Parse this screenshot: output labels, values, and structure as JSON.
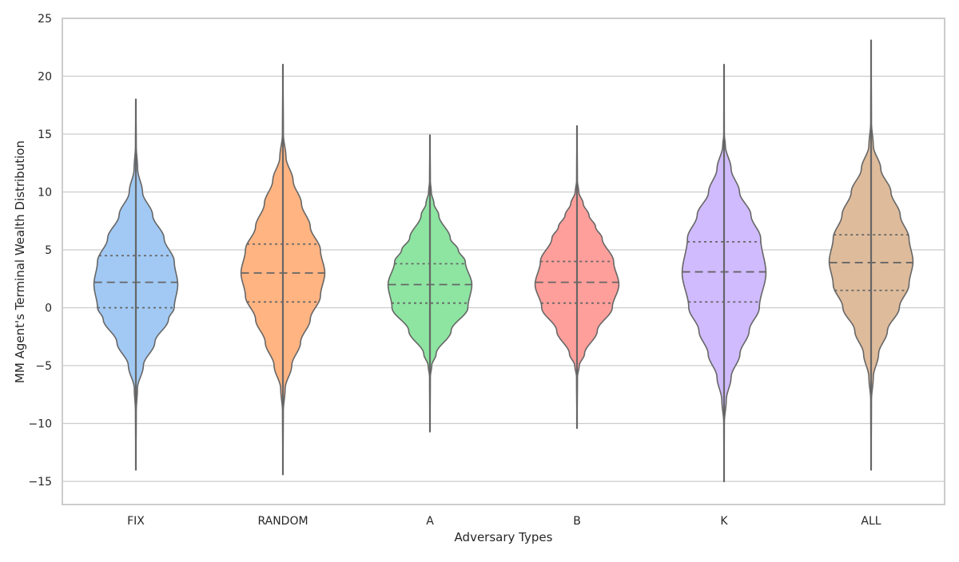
{
  "chart_data": {
    "type": "violin",
    "title": "",
    "xlabel": "Adversary Types",
    "ylabel": "MM Agent's Terminal Wealth Distribution",
    "ylim": [
      -17,
      25
    ],
    "y_ticks": [
      -15,
      -10,
      -5,
      0,
      5,
      10,
      15,
      20,
      25
    ],
    "y_tick_labels": [
      "−15",
      "−10",
      "−5",
      "0",
      "5",
      "10",
      "15",
      "20",
      "25"
    ],
    "grid": "horizontal",
    "inner": "quartile",
    "categories": [
      "FIX",
      "RANDOM",
      "A",
      "B",
      "K",
      "ALL"
    ],
    "violins": [
      {
        "category": "FIX",
        "color": "#a1c9f4",
        "min": -14.0,
        "max": 18.0,
        "q1": 0.0,
        "median": 2.2,
        "q3": 4.5,
        "density_y": [
          -14,
          -9,
          -7,
          -5,
          -3,
          -1,
          0,
          2,
          4,
          6,
          8,
          10,
          12,
          14,
          18
        ],
        "density_w": [
          0.0,
          0.008,
          0.035,
          0.17,
          0.43,
          0.74,
          0.87,
          0.95,
          0.87,
          0.64,
          0.38,
          0.15,
          0.04,
          0.008,
          0.0
        ]
      },
      {
        "category": "RANDOM",
        "color": "#ffb482",
        "min": -14.4,
        "max": 21.0,
        "q1": 0.5,
        "median": 3.0,
        "q3": 5.5,
        "density_y": [
          -14.4,
          -9,
          -7,
          -5,
          -3,
          -1,
          1,
          3,
          5,
          7,
          9,
          11,
          13,
          15,
          21
        ],
        "density_w": [
          0.0,
          0.008,
          0.05,
          0.2,
          0.4,
          0.62,
          0.85,
          0.95,
          0.85,
          0.62,
          0.42,
          0.23,
          0.07,
          0.01,
          0.0
        ]
      },
      {
        "category": "A",
        "color": "#8de5a1",
        "min": -10.7,
        "max": 14.9,
        "q1": 0.4,
        "median": 2.0,
        "q3": 3.8,
        "density_y": [
          -10.7,
          -6,
          -5,
          -4,
          -2,
          0,
          2,
          4,
          5,
          6,
          8,
          9,
          10,
          11,
          14.9
        ],
        "density_w": [
          0.0,
          0.008,
          0.04,
          0.14,
          0.48,
          0.86,
          0.95,
          0.8,
          0.64,
          0.46,
          0.2,
          0.09,
          0.03,
          0.008,
          0.0
        ]
      },
      {
        "category": "B",
        "color": "#ff9f9b",
        "min": -10.4,
        "max": 15.7,
        "q1": 0.4,
        "median": 2.2,
        "q3": 4.0,
        "density_y": [
          -10.4,
          -6,
          -5,
          -4,
          -2,
          0,
          2,
          4,
          6,
          7,
          8,
          9,
          10,
          11,
          15.7
        ],
        "density_w": [
          0.0,
          0.01,
          0.05,
          0.17,
          0.46,
          0.8,
          0.95,
          0.83,
          0.57,
          0.42,
          0.27,
          0.14,
          0.04,
          0.008,
          0.0
        ]
      },
      {
        "category": "K",
        "color": "#d0bbff",
        "min": -15.0,
        "max": 21.0,
        "q1": 0.5,
        "median": 3.1,
        "q3": 5.7,
        "density_y": [
          -15,
          -10,
          -8,
          -6,
          -4,
          -2,
          0,
          3,
          6,
          8,
          10,
          12,
          14,
          15,
          21
        ],
        "density_w": [
          0.0,
          0.005,
          0.05,
          0.16,
          0.36,
          0.57,
          0.8,
          0.95,
          0.83,
          0.61,
          0.35,
          0.16,
          0.03,
          0.005,
          0.0
        ]
      },
      {
        "category": "ALL",
        "color": "#debb9b",
        "min": -14.0,
        "max": 23.1,
        "q1": 1.5,
        "median": 3.9,
        "q3": 6.3,
        "density_y": [
          -14,
          -8,
          -6,
          -4,
          -2,
          0,
          2,
          4,
          6,
          8,
          10,
          12,
          14,
          16,
          23.1
        ],
        "density_w": [
          0.0,
          0.008,
          0.05,
          0.17,
          0.37,
          0.64,
          0.86,
          0.95,
          0.86,
          0.66,
          0.45,
          0.22,
          0.05,
          0.008,
          0.0
        ]
      }
    ],
    "colors": {
      "grid": "#cccccc",
      "spine": "#cccccc",
      "outline": "#666666",
      "text": "#262626",
      "background": "#ffffff"
    }
  }
}
